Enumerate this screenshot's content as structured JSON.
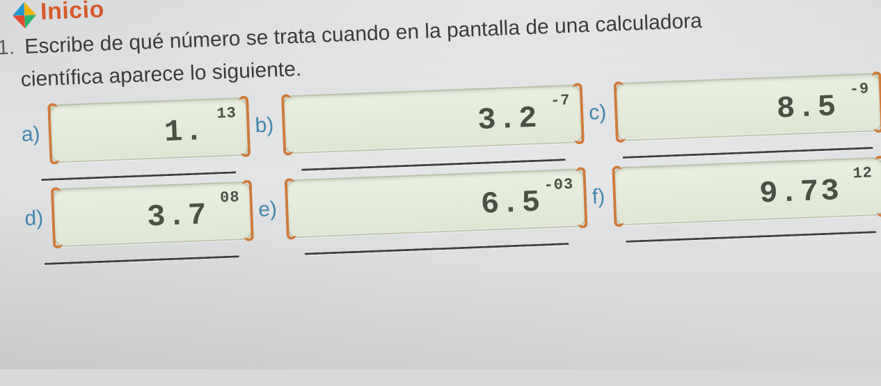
{
  "header": {
    "label": "Inicio"
  },
  "question": {
    "number": "1.",
    "line1": "Escribe de qué número se trata cuando en la pantalla de una calculadora",
    "line2": "científica aparece lo siguiente."
  },
  "items": {
    "a": {
      "letter": "a)",
      "mantissa": "1.",
      "exponent": "13"
    },
    "b": {
      "letter": "b)",
      "mantissa": "3.2",
      "exponent": "-7"
    },
    "c": {
      "letter": "c)",
      "mantissa": "8.5",
      "exponent": "-9"
    },
    "d": {
      "letter": "d)",
      "mantissa": "3.7",
      "exponent": "08"
    },
    "e": {
      "letter": "e)",
      "mantissa": "6.5",
      "exponent": "-03"
    },
    "f": {
      "letter": "f)",
      "mantissa": "9.73",
      "exponent": "12"
    }
  },
  "style": {
    "type": "document",
    "background_color": "#dedfe0",
    "accent_color": "#d65a2b",
    "item_letter_color": "#3f86ad",
    "display_bg": "#e4ead9",
    "display_border": "#d07a3a",
    "text_color": "#3a3b3c",
    "display_font": "Courier New",
    "body_font": "Verdana",
    "rotation_deg": -2.2,
    "grid": {
      "cols": 3,
      "rows": 2
    }
  }
}
